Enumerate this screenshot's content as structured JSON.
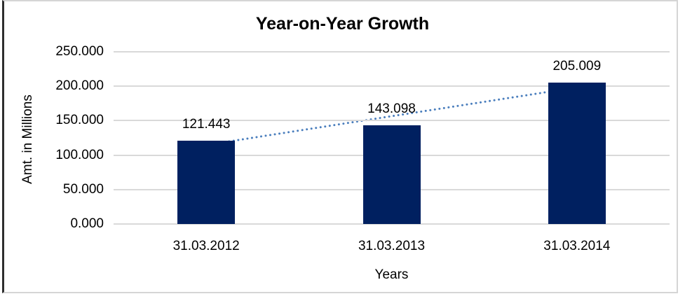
{
  "chart_data": {
    "type": "bar",
    "title": "Year-on-Year Growth",
    "xlabel": "Years",
    "ylabel": "Amt. in Millions",
    "categories": [
      "31.03.2012",
      "31.03.2013",
      "31.03.2014"
    ],
    "values": [
      121.443,
      143.098,
      205.009
    ],
    "data_labels": [
      "121.443",
      "143.098",
      "205.009"
    ],
    "ytick_labels": [
      "250.000",
      "200.000",
      "150.000",
      "100.000",
      "50.000",
      "0.000"
    ],
    "ytick_values": [
      250,
      200,
      150,
      100,
      50,
      0
    ],
    "ylim": [
      0,
      250
    ],
    "grid": true,
    "legend_position": "none",
    "trendline": {
      "kind": "linear",
      "style": "dotted"
    },
    "colors": {
      "bar": "#002060",
      "trendline": "#4a7ebd",
      "gridline": "#d9d9d9",
      "text": "#000000",
      "frame_light": "#d5d5d5",
      "frame_dark": "#2e2e2e"
    }
  }
}
